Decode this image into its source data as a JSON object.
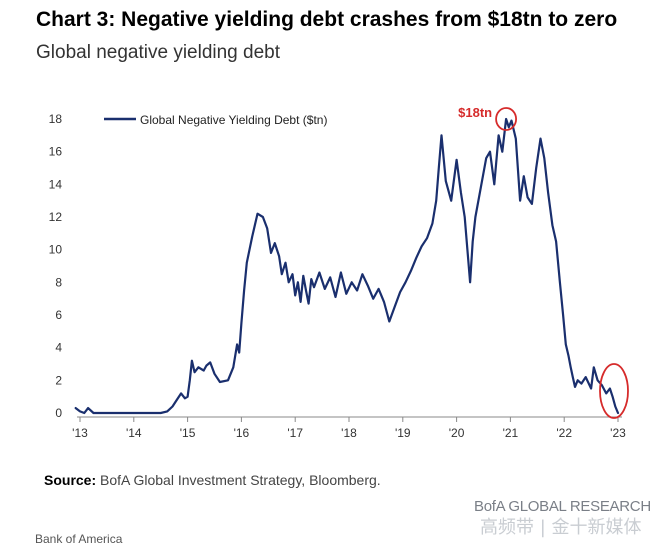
{
  "title": "Chart 3: Negative yielding debt crashes from $18tn to zero",
  "subtitle": "Global negative yielding debt",
  "source_label": "Source:",
  "source_text": "BofA Global Investment Strategy, Bloomberg.",
  "brand": "BofA GLOBAL RESEARCH",
  "watermark": "高频带 | 金十新媒体",
  "footer": "Bank of America",
  "colors": {
    "line": "#1a2f6e",
    "annotation": "#d62b2b",
    "axis": "#888888"
  },
  "chart_data": {
    "type": "line",
    "title": "Chart 3: Negative yielding debt crashes from $18tn to zero",
    "subtitle": "Global negative yielding debt",
    "xlabel": "",
    "ylabel": "",
    "x_tick_labels": [
      "'13",
      "'14",
      "'15",
      "'16",
      "'17",
      "'18",
      "'19",
      "'20",
      "'21",
      "'22",
      "'23"
    ],
    "y_ticks": [
      0,
      2,
      4,
      6,
      8,
      10,
      12,
      14,
      16,
      18
    ],
    "ylim": [
      0,
      18
    ],
    "xlim": [
      2013.0,
      2023.0
    ],
    "grid": false,
    "legend_position": "top-left",
    "annotation_text": "$18tn",
    "series": [
      {
        "name": "Global Negative Yielding Debt ($tn)",
        "x": [
          2012.92,
          2013.0,
          2013.08,
          2013.15,
          2013.25,
          2013.4,
          2013.8,
          2014.2,
          2014.5,
          2014.62,
          2014.72,
          2014.8,
          2014.88,
          2014.95,
          2015.0,
          2015.04,
          2015.08,
          2015.13,
          2015.2,
          2015.3,
          2015.35,
          2015.42,
          2015.5,
          2015.6,
          2015.75,
          2015.85,
          2015.92,
          2015.96,
          2016.0,
          2016.05,
          2016.1,
          2016.2,
          2016.3,
          2016.4,
          2016.48,
          2016.55,
          2016.62,
          2016.7,
          2016.75,
          2016.82,
          2016.88,
          2016.95,
          2017.0,
          2017.05,
          2017.1,
          2017.15,
          2017.2,
          2017.25,
          2017.3,
          2017.35,
          2017.45,
          2017.55,
          2017.65,
          2017.75,
          2017.85,
          2017.95,
          2018.05,
          2018.15,
          2018.25,
          2018.35,
          2018.45,
          2018.55,
          2018.65,
          2018.75,
          2018.85,
          2018.95,
          2019.05,
          2019.15,
          2019.25,
          2019.35,
          2019.45,
          2019.55,
          2019.62,
          2019.67,
          2019.72,
          2019.8,
          2019.9,
          2020.0,
          2020.08,
          2020.15,
          2020.2,
          2020.25,
          2020.3,
          2020.35,
          2020.45,
          2020.55,
          2020.62,
          2020.7,
          2020.78,
          2020.85,
          2020.92,
          2020.97,
          2021.02,
          2021.1,
          2021.18,
          2021.25,
          2021.32,
          2021.4,
          2021.48,
          2021.56,
          2021.63,
          2021.7,
          2021.78,
          2021.85,
          2021.92,
          2021.98,
          2022.03,
          2022.08,
          2022.12,
          2022.16,
          2022.2,
          2022.25,
          2022.32,
          2022.4,
          2022.5,
          2022.55,
          2022.62,
          2022.7,
          2022.78,
          2022.85,
          2022.9,
          2022.95,
          2023.0
        ],
        "values": [
          0.3,
          0.1,
          0.0,
          0.3,
          0.0,
          0.0,
          0.0,
          0.0,
          0.0,
          0.1,
          0.4,
          0.8,
          1.2,
          0.9,
          1.0,
          2.0,
          3.2,
          2.5,
          2.8,
          2.6,
          2.9,
          3.1,
          2.4,
          1.9,
          2.0,
          2.8,
          4.2,
          3.7,
          5.5,
          7.5,
          9.2,
          10.8,
          12.2,
          12.0,
          11.3,
          9.8,
          10.4,
          9.6,
          8.5,
          9.2,
          8.0,
          8.5,
          7.2,
          8.0,
          6.8,
          8.4,
          7.5,
          6.7,
          8.2,
          7.7,
          8.6,
          7.6,
          8.3,
          7.1,
          8.6,
          7.3,
          8.0,
          7.5,
          8.5,
          7.8,
          7.0,
          7.6,
          6.8,
          5.6,
          6.5,
          7.4,
          8.0,
          8.7,
          9.5,
          10.2,
          10.7,
          11.6,
          13.0,
          15.0,
          17.0,
          14.2,
          13.0,
          15.5,
          13.5,
          12.0,
          10.0,
          8.0,
          10.5,
          12.0,
          13.8,
          15.6,
          16.0,
          14.0,
          17.0,
          16.0,
          18.0,
          17.5,
          17.9,
          16.8,
          13.0,
          14.5,
          13.2,
          12.8,
          15.0,
          16.8,
          15.6,
          13.5,
          11.5,
          10.5,
          8.0,
          6.0,
          4.2,
          3.5,
          2.8,
          2.2,
          1.6,
          2.0,
          1.8,
          2.2,
          1.5,
          2.8,
          2.0,
          1.7,
          1.2,
          1.5,
          1.0,
          0.4,
          0.0
        ]
      }
    ]
  }
}
